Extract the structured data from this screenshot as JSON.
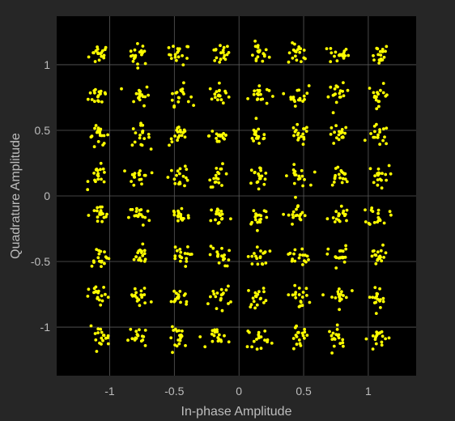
{
  "chart_data": {
    "type": "scatter",
    "title": "",
    "xlabel": "In-phase Amplitude",
    "ylabel": "Quadrature Amplitude",
    "xlim": [
      -1.41,
      1.37
    ],
    "ylim": [
      -1.37,
      1.37
    ],
    "x_ticks": [
      -1,
      -0.5,
      0,
      0.5,
      1
    ],
    "x_tick_labels": [
      "-1",
      "-0.5",
      "0",
      "0.5",
      "1"
    ],
    "y_ticks": [
      -1,
      -0.5,
      0,
      0.5,
      1
    ],
    "y_tick_labels": [
      "-1",
      "-0.5",
      "0",
      "0.5",
      "1"
    ],
    "grid": true,
    "background": "#000000",
    "marker_color": "#ffff00",
    "figure_color": "#262626",
    "axis_text_color": "#bdbdbd",
    "grid_color": "#5a5a5a",
    "constellation": "64-QAM",
    "cluster_centers_x": [
      -1.08,
      -0.77,
      -0.46,
      -0.15,
      0.15,
      0.46,
      0.77,
      1.08
    ],
    "cluster_centers_y": [
      1.08,
      0.77,
      0.46,
      0.15,
      -0.15,
      -0.46,
      -0.77,
      -1.08
    ],
    "points_per_cluster": 18,
    "noise_spread": 0.04
  }
}
